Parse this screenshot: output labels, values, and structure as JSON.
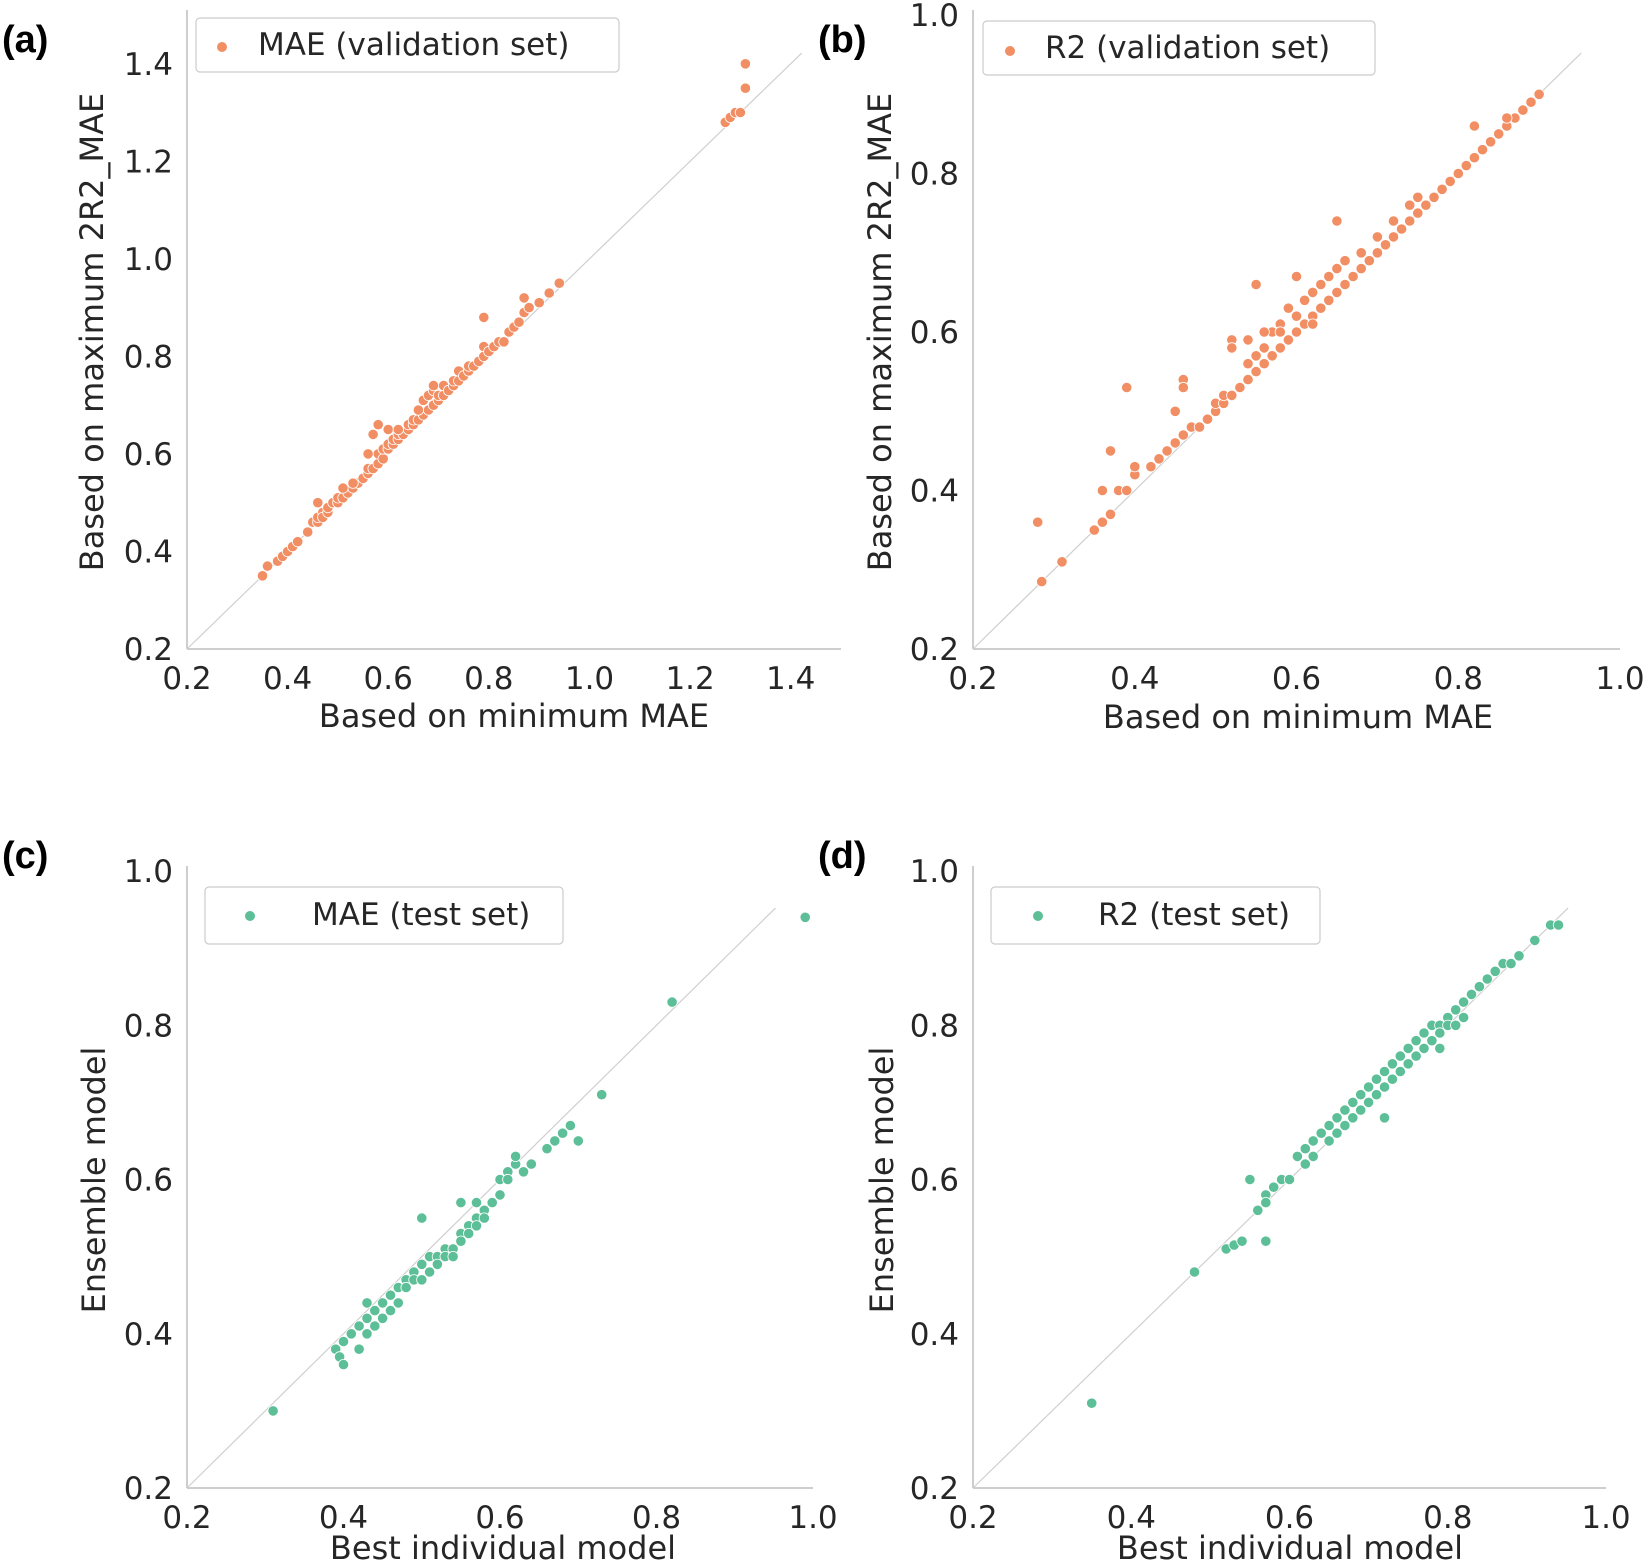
{
  "colors": {
    "orange": "#f28e63",
    "green": "#5cbf97",
    "axis": "#bdbdbd",
    "diag": "#cfcfcf",
    "legend_border": "#cccccc"
  },
  "chart_data": [
    {
      "panel_label": "(a)",
      "type": "scatter",
      "legend": "MAE (validation set)",
      "xlabel": "Based on minimum MAE",
      "ylabel": "Based on maximum 2R2_MAE",
      "xlim": [
        0.2,
        1.5
      ],
      "ylim": [
        0.2,
        1.5
      ],
      "xticks": [
        "0.2",
        "0.4",
        "0.6",
        "0.8",
        "1.0",
        "1.2",
        "1.4"
      ],
      "yticks": [
        "0.2",
        "0.4",
        "0.6",
        "0.8",
        "1.0",
        "1.2",
        "1.4"
      ],
      "color": "orange",
      "diagonal": true,
      "x": [
        0.35,
        0.36,
        0.38,
        0.39,
        0.4,
        0.41,
        0.42,
        0.44,
        0.45,
        0.46,
        0.46,
        0.47,
        0.47,
        0.48,
        0.48,
        0.49,
        0.5,
        0.5,
        0.51,
        0.52,
        0.53,
        0.54,
        0.55,
        0.56,
        0.56,
        0.57,
        0.58,
        0.58,
        0.59,
        0.59,
        0.6,
        0.6,
        0.61,
        0.61,
        0.62,
        0.62,
        0.63,
        0.64,
        0.64,
        0.65,
        0.65,
        0.66,
        0.66,
        0.67,
        0.67,
        0.68,
        0.68,
        0.69,
        0.69,
        0.7,
        0.7,
        0.71,
        0.71,
        0.72,
        0.73,
        0.73,
        0.74,
        0.74,
        0.75,
        0.76,
        0.76,
        0.77,
        0.78,
        0.79,
        0.79,
        0.8,
        0.81,
        0.82,
        0.83,
        0.84,
        0.85,
        0.86,
        0.87,
        0.88,
        0.9,
        0.92,
        0.94,
        1.27,
        1.28,
        1.29,
        1.3,
        1.31,
        1.31,
        0.58,
        0.6,
        0.53,
        0.51,
        0.46,
        0.57,
        0.69,
        0.79,
        0.87,
        0.66,
        0.56,
        0.62
      ],
      "y": [
        0.35,
        0.37,
        0.38,
        0.39,
        0.4,
        0.41,
        0.42,
        0.44,
        0.46,
        0.46,
        0.47,
        0.48,
        0.47,
        0.48,
        0.49,
        0.5,
        0.5,
        0.51,
        0.51,
        0.52,
        0.53,
        0.54,
        0.55,
        0.56,
        0.57,
        0.57,
        0.58,
        0.6,
        0.59,
        0.61,
        0.61,
        0.62,
        0.62,
        0.63,
        0.63,
        0.64,
        0.64,
        0.65,
        0.66,
        0.66,
        0.67,
        0.67,
        0.69,
        0.68,
        0.71,
        0.69,
        0.72,
        0.7,
        0.73,
        0.71,
        0.72,
        0.72,
        0.74,
        0.73,
        0.74,
        0.75,
        0.75,
        0.77,
        0.76,
        0.77,
        0.78,
        0.78,
        0.79,
        0.8,
        0.82,
        0.81,
        0.82,
        0.83,
        0.83,
        0.85,
        0.86,
        0.87,
        0.89,
        0.9,
        0.91,
        0.93,
        0.95,
        1.28,
        1.29,
        1.3,
        1.3,
        1.35,
        1.4,
        0.66,
        0.65,
        0.54,
        0.53,
        0.5,
        0.64,
        0.74,
        0.88,
        0.92,
        0.69,
        0.6,
        0.65
      ]
    },
    {
      "panel_label": "(b)",
      "type": "scatter",
      "legend": "R2 (validation set)",
      "xlabel": "Based on minimum MAE",
      "ylabel": "Based on maximum 2R2_MAE",
      "xlim": [
        0.2,
        1.0
      ],
      "ylim": [
        0.2,
        1.0
      ],
      "xticks": [
        "0.2",
        "0.4",
        "0.6",
        "0.8",
        "1.0"
      ],
      "yticks": [
        "0.2",
        "0.4",
        "0.6",
        "0.8",
        "1.0"
      ],
      "color": "orange",
      "diagonal": true,
      "x": [
        0.285,
        0.28,
        0.31,
        0.35,
        0.36,
        0.37,
        0.36,
        0.37,
        0.38,
        0.39,
        0.4,
        0.4,
        0.39,
        0.42,
        0.43,
        0.44,
        0.45,
        0.46,
        0.46,
        0.47,
        0.48,
        0.49,
        0.5,
        0.5,
        0.51,
        0.51,
        0.52,
        0.52,
        0.53,
        0.54,
        0.54,
        0.55,
        0.55,
        0.56,
        0.56,
        0.57,
        0.57,
        0.58,
        0.58,
        0.59,
        0.59,
        0.6,
        0.6,
        0.61,
        0.61,
        0.62,
        0.62,
        0.63,
        0.63,
        0.64,
        0.64,
        0.65,
        0.65,
        0.66,
        0.66,
        0.67,
        0.68,
        0.68,
        0.69,
        0.7,
        0.7,
        0.71,
        0.72,
        0.72,
        0.73,
        0.74,
        0.74,
        0.75,
        0.75,
        0.76,
        0.77,
        0.78,
        0.79,
        0.8,
        0.81,
        0.82,
        0.83,
        0.84,
        0.85,
        0.86,
        0.87,
        0.88,
        0.89,
        0.9,
        0.55,
        0.65,
        0.6,
        0.52,
        0.46,
        0.45,
        0.58,
        0.62,
        0.56,
        0.54,
        0.82,
        0.86
      ],
      "y": [
        0.285,
        0.36,
        0.31,
        0.35,
        0.36,
        0.37,
        0.4,
        0.45,
        0.4,
        0.4,
        0.42,
        0.43,
        0.53,
        0.43,
        0.44,
        0.45,
        0.46,
        0.47,
        0.54,
        0.48,
        0.48,
        0.49,
        0.5,
        0.51,
        0.51,
        0.52,
        0.52,
        0.59,
        0.53,
        0.54,
        0.56,
        0.55,
        0.57,
        0.56,
        0.58,
        0.57,
        0.6,
        0.58,
        0.61,
        0.59,
        0.63,
        0.6,
        0.62,
        0.61,
        0.64,
        0.62,
        0.65,
        0.63,
        0.66,
        0.64,
        0.67,
        0.65,
        0.68,
        0.66,
        0.69,
        0.67,
        0.68,
        0.7,
        0.69,
        0.7,
        0.72,
        0.71,
        0.72,
        0.74,
        0.73,
        0.74,
        0.76,
        0.75,
        0.77,
        0.76,
        0.77,
        0.78,
        0.79,
        0.8,
        0.81,
        0.82,
        0.83,
        0.84,
        0.85,
        0.86,
        0.87,
        0.88,
        0.89,
        0.9,
        0.66,
        0.74,
        0.67,
        0.58,
        0.53,
        0.5,
        0.6,
        0.61,
        0.6,
        0.59,
        0.86,
        0.87
      ]
    },
    {
      "panel_label": "(c)",
      "type": "scatter",
      "legend": "MAE (test set)",
      "xlabel": "Best individual model",
      "ylabel": "Ensemble model",
      "xlim": [
        0.2,
        1.0
      ],
      "ylim": [
        0.2,
        1.0
      ],
      "xticks": [
        "0.2",
        "0.4",
        "0.6",
        "0.8",
        "1.0"
      ],
      "yticks": [
        "0.2",
        "0.4",
        "0.6",
        "0.8",
        "1.0"
      ],
      "color": "green",
      "diagonal": true,
      "x": [
        0.31,
        0.39,
        0.395,
        0.4,
        0.4,
        0.41,
        0.42,
        0.42,
        0.43,
        0.43,
        0.44,
        0.44,
        0.45,
        0.45,
        0.46,
        0.46,
        0.47,
        0.47,
        0.48,
        0.48,
        0.49,
        0.49,
        0.5,
        0.5,
        0.51,
        0.51,
        0.52,
        0.52,
        0.53,
        0.53,
        0.54,
        0.54,
        0.55,
        0.55,
        0.56,
        0.56,
        0.57,
        0.57,
        0.58,
        0.58,
        0.59,
        0.6,
        0.6,
        0.61,
        0.61,
        0.62,
        0.63,
        0.64,
        0.66,
        0.67,
        0.68,
        0.69,
        0.7,
        0.73,
        0.82,
        0.99,
        0.5,
        0.55,
        0.57,
        0.43,
        0.42,
        0.62
      ],
      "y": [
        0.3,
        0.38,
        0.37,
        0.39,
        0.36,
        0.4,
        0.38,
        0.41,
        0.42,
        0.4,
        0.43,
        0.41,
        0.44,
        0.42,
        0.45,
        0.43,
        0.46,
        0.44,
        0.47,
        0.46,
        0.48,
        0.47,
        0.49,
        0.47,
        0.5,
        0.48,
        0.5,
        0.49,
        0.51,
        0.5,
        0.51,
        0.5,
        0.53,
        0.52,
        0.54,
        0.53,
        0.55,
        0.54,
        0.56,
        0.55,
        0.57,
        0.58,
        0.6,
        0.61,
        0.6,
        0.62,
        0.61,
        0.62,
        0.64,
        0.65,
        0.66,
        0.67,
        0.65,
        0.71,
        0.83,
        0.94,
        0.55,
        0.57,
        0.57,
        0.44,
        0.38,
        0.63
      ]
    },
    {
      "panel_label": "(d)",
      "type": "scatter",
      "legend": "R2 (test set)",
      "xlabel": "Best individual model",
      "ylabel": "Ensemble model",
      "xlim": [
        0.2,
        1.0
      ],
      "ylim": [
        0.2,
        1.0
      ],
      "xticks": [
        "0.2",
        "0.4",
        "0.6",
        "0.8",
        "1.0"
      ],
      "yticks": [
        "0.2",
        "0.4",
        "0.6",
        "0.8",
        "1.0"
      ],
      "color": "green",
      "diagonal": true,
      "x": [
        0.35,
        0.48,
        0.52,
        0.53,
        0.54,
        0.55,
        0.56,
        0.57,
        0.57,
        0.58,
        0.59,
        0.6,
        0.61,
        0.62,
        0.62,
        0.63,
        0.63,
        0.64,
        0.65,
        0.65,
        0.66,
        0.66,
        0.67,
        0.67,
        0.68,
        0.68,
        0.69,
        0.69,
        0.7,
        0.7,
        0.71,
        0.71,
        0.72,
        0.72,
        0.73,
        0.73,
        0.74,
        0.74,
        0.75,
        0.75,
        0.76,
        0.76,
        0.77,
        0.77,
        0.78,
        0.78,
        0.79,
        0.79,
        0.8,
        0.8,
        0.81,
        0.81,
        0.82,
        0.82,
        0.83,
        0.84,
        0.85,
        0.86,
        0.87,
        0.88,
        0.89,
        0.91,
        0.93,
        0.94,
        0.57,
        0.72,
        0.79
      ],
      "y": [
        0.31,
        0.48,
        0.51,
        0.515,
        0.52,
        0.6,
        0.56,
        0.58,
        0.57,
        0.59,
        0.6,
        0.6,
        0.63,
        0.64,
        0.62,
        0.65,
        0.63,
        0.66,
        0.67,
        0.65,
        0.68,
        0.66,
        0.69,
        0.67,
        0.7,
        0.68,
        0.71,
        0.69,
        0.72,
        0.7,
        0.73,
        0.71,
        0.74,
        0.72,
        0.75,
        0.73,
        0.76,
        0.74,
        0.77,
        0.75,
        0.78,
        0.76,
        0.79,
        0.77,
        0.8,
        0.78,
        0.8,
        0.79,
        0.81,
        0.8,
        0.82,
        0.8,
        0.83,
        0.81,
        0.84,
        0.85,
        0.86,
        0.87,
        0.88,
        0.88,
        0.89,
        0.91,
        0.93,
        0.93,
        0.52,
        0.68,
        0.77
      ]
    }
  ]
}
